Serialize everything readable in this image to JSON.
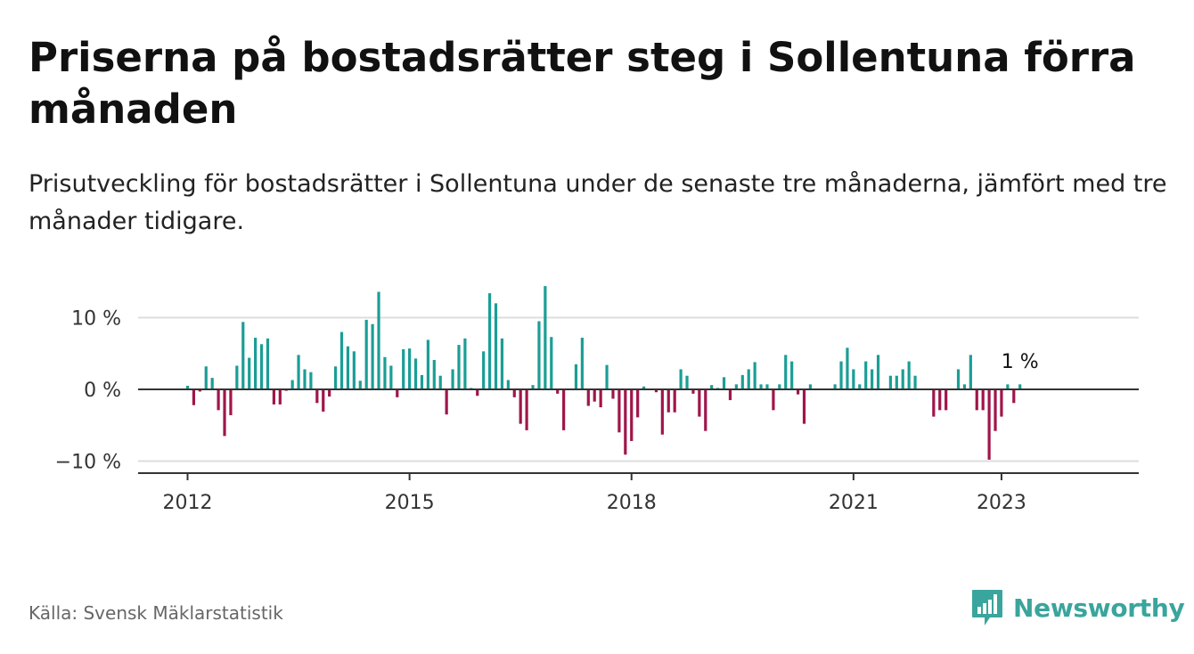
{
  "header": {
    "title": "Priserna på bostadsrätter steg i Sollentuna förra månaden",
    "subtitle": "Prisutveckling för bostadsrätter i Sollentuna under de senaste tre månaderna, jämfört med tre månader tidigare."
  },
  "footer": {
    "source": "Källa: Svensk Mäklarstatistik",
    "brand": "Newsworthy"
  },
  "colors": {
    "positive": "#1a9e96",
    "negative": "#a0154a",
    "brand": "#3aa59c"
  },
  "icons": {
    "brand_logo": "bar-chart-speech-bubble-icon"
  },
  "chart_data": {
    "type": "bar",
    "y_unit": "%",
    "ylim": [
      -12,
      15
    ],
    "yticks": [
      {
        "value": 10,
        "label": "10 %"
      },
      {
        "value": 0,
        "label": "0 %"
      },
      {
        "value": -10,
        "label": "−10 %"
      }
    ],
    "xticks": [
      "2012",
      "2015",
      "2018",
      "2021",
      "2023"
    ],
    "grid": true,
    "last_label": "1 %",
    "series": [
      {
        "values": [
          0.5,
          -2.2,
          -0.3,
          3.2,
          1.6,
          -2.9,
          -6.5,
          -3.6,
          3.3,
          9.4,
          4.4,
          7.2,
          6.3,
          7.1,
          -2.1,
          -2.1,
          -0.2,
          1.3,
          4.8,
          2.8,
          2.4,
          -1.9,
          -3.1,
          -1.0,
          3.2,
          8.0,
          6.0,
          5.3,
          1.2,
          9.7,
          9.1,
          13.6,
          4.5,
          3.3,
          -1.1,
          5.6,
          5.7,
          4.3,
          2.0,
          6.9,
          4.1,
          1.9,
          -3.5,
          2.8,
          6.2,
          7.1,
          0.2,
          -0.9,
          5.3,
          13.4,
          12.0,
          7.1,
          1.3,
          -1.1,
          -4.8,
          -5.7,
          0.6,
          9.5,
          14.4,
          7.3,
          -0.6,
          -5.7,
          0.1,
          3.5,
          7.2,
          -2.3,
          -1.7,
          -2.5,
          3.4,
          -1.3,
          -6.0,
          -9.1,
          -7.2,
          -3.9,
          0.4,
          0.0,
          -0.4,
          -6.3,
          -3.2,
          -3.2,
          2.8,
          1.9,
          -0.6,
          -3.8,
          -5.8,
          0.6,
          0.2,
          1.7,
          -1.5,
          0.7,
          2.0,
          2.8,
          3.8,
          0.7,
          0.7,
          -2.9,
          0.7,
          4.8,
          3.9,
          -0.7,
          -4.8,
          0.7,
          0.1,
          0.1,
          0.1,
          0.7,
          3.9,
          5.8,
          2.8,
          0.7,
          3.9,
          2.8,
          4.8,
          0.1,
          1.9,
          1.9,
          2.8,
          3.9,
          1.9,
          0.1,
          0.1,
          -3.8,
          -2.9,
          -2.9,
          0.1,
          2.8,
          0.7,
          4.8,
          -2.9,
          -2.9,
          -9.8,
          -5.8,
          -3.8,
          0.7,
          -1.9,
          0.7
        ]
      }
    ]
  }
}
